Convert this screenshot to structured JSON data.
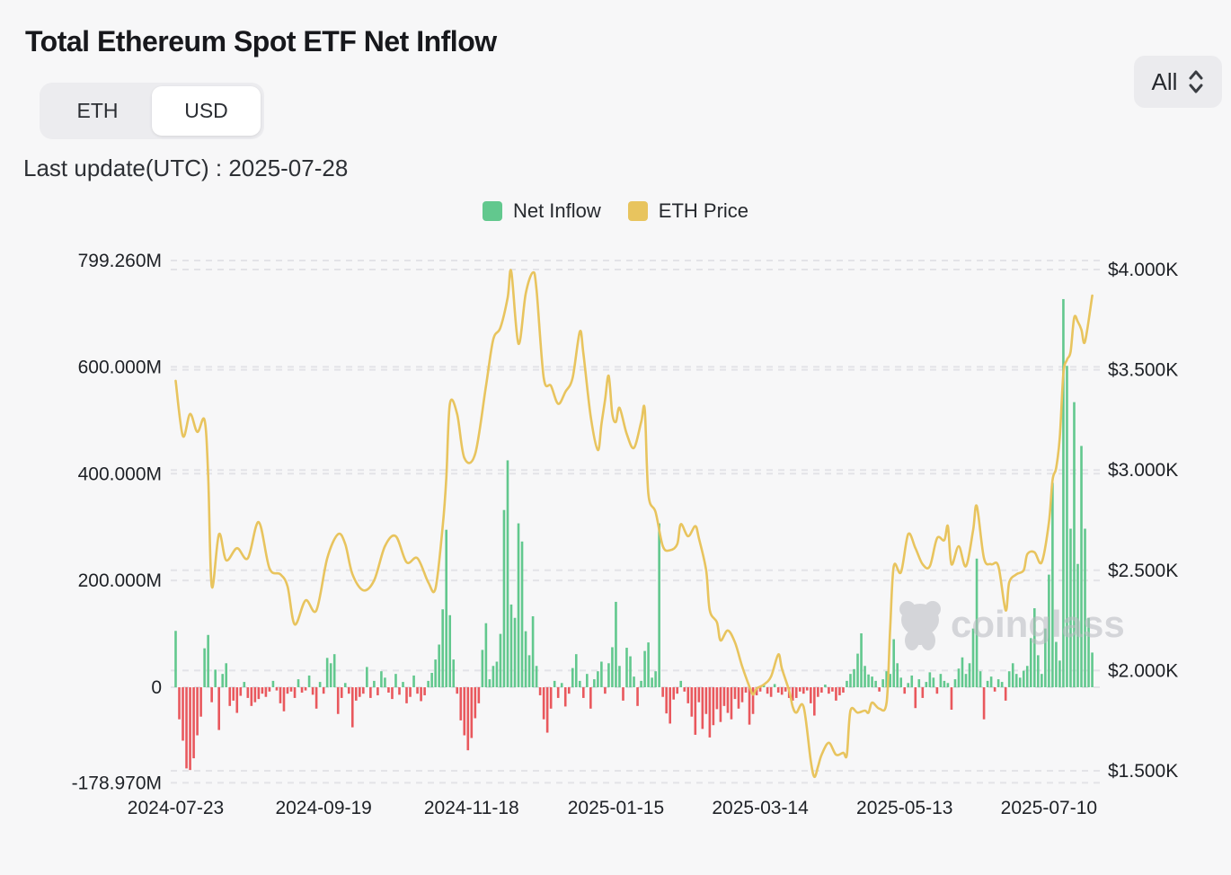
{
  "header": {
    "title": "Total Ethereum Spot ETF Net Inflow",
    "toggle": {
      "options": [
        "ETH",
        "USD"
      ],
      "selected": "USD"
    },
    "range_select": {
      "value": "All"
    },
    "last_update": "Last update(UTC) : 2025-07-28"
  },
  "legend": [
    {
      "label": "Net Inflow",
      "color": "#62C88E"
    },
    {
      "label": "ETH Price",
      "color": "#E8C45E"
    }
  ],
  "watermark": {
    "text": "coinglass"
  },
  "colors": {
    "bar_positive": "#62C88E",
    "bar_negative": "#E9585D",
    "price_line": "#E8C45E",
    "grid": "#e3e3e7",
    "axis_text": "#1e2126"
  },
  "chart_data": {
    "type": "bar+line",
    "title": "Total Ethereum Spot ETF Net Inflow",
    "grid": "dashed",
    "legend_position": "top-center",
    "left_axis": {
      "name": "Net Inflow (USD millions)",
      "max": 799.26,
      "min": -178.97,
      "ticks": [
        {
          "label": "799.260M",
          "value": 799.26
        },
        {
          "label": "600.000M",
          "value": 600
        },
        {
          "label": "400.000M",
          "value": 400
        },
        {
          "label": "200.000M",
          "value": 200
        },
        {
          "label": "0",
          "value": 0
        },
        {
          "label": "-178.970M",
          "value": -178.97
        }
      ]
    },
    "right_axis": {
      "name": "ETH Price (USD)",
      "max": 4000,
      "min": 1500,
      "ticks": [
        {
          "label": "$4.000K",
          "value": 4000
        },
        {
          "label": "$3.500K",
          "value": 3500
        },
        {
          "label": "$3.000K",
          "value": 3000
        },
        {
          "label": "$2.500K",
          "value": 2500
        },
        {
          "label": "$2.000K",
          "value": 2000
        },
        {
          "label": "$1.500K",
          "value": 1500
        }
      ]
    },
    "x_ticks": [
      {
        "label": "2024-07-23",
        "i": 0
      },
      {
        "label": "2024-09-19",
        "i": 41
      },
      {
        "label": "2024-11-18",
        "i": 82
      },
      {
        "label": "2025-01-15",
        "i": 122
      },
      {
        "label": "2025-03-14",
        "i": 162
      },
      {
        "label": "2025-05-13",
        "i": 202
      },
      {
        "label": "2025-07-10",
        "i": 242
      }
    ],
    "series": [
      {
        "name": "Net Inflow",
        "type": "bar",
        "unit": "USD millions per trading day",
        "values": [
          105.6,
          -60,
          -100,
          -152,
          -155,
          -133,
          -90,
          -55,
          73,
          98,
          -28,
          33,
          -80,
          25,
          45,
          -35,
          -25,
          -48,
          -16,
          10,
          -20,
          -35,
          -28,
          -22,
          -12,
          -18,
          -8,
          12,
          -6,
          -30,
          -45,
          -12,
          -8,
          -20,
          15,
          -10,
          -6,
          22,
          -14,
          -40,
          10,
          -12,
          55,
          45,
          62,
          -50,
          -20,
          8,
          -12,
          -75,
          -25,
          -18,
          -12,
          38,
          -20,
          12,
          -15,
          30,
          18,
          -10,
          -22,
          25,
          -14,
          10,
          -30,
          -18,
          22,
          -12,
          -26,
          -15,
          12,
          27,
          52,
          80,
          146,
          295,
          135,
          52,
          -12,
          -62,
          -90,
          -118,
          -95,
          -58,
          -30,
          70,
          120,
          15,
          40,
          48,
          100,
          332,
          425,
          155,
          130,
          307,
          273,
          105,
          60,
          133,
          40,
          -15,
          -60,
          -85,
          -40,
          12,
          -20,
          8,
          -36,
          -12,
          36,
          62,
          12,
          -20,
          25,
          -40,
          15,
          30,
          48,
          -12,
          45,
          75,
          160,
          40,
          -25,
          74,
          58,
          20,
          -35,
          12,
          68,
          84,
          18,
          30,
          307,
          -18,
          -49,
          -68,
          -23,
          -12,
          12,
          -8,
          -30,
          -55,
          -89,
          -28,
          -78,
          -50,
          -94,
          -71,
          -41,
          -65,
          -35,
          -48,
          -60,
          -22,
          -40,
          -28,
          -10,
          -70,
          -50,
          -15,
          -8,
          5,
          -12,
          -18,
          6,
          -10,
          -14,
          -8,
          -20,
          -25,
          -20,
          -8,
          -12,
          -6,
          -30,
          -53,
          -18,
          -10,
          5,
          -12,
          -8,
          -25,
          -15,
          -10,
          12,
          25,
          34,
          63,
          101,
          40,
          24,
          20,
          12,
          -8,
          15,
          30,
          25,
          90,
          45,
          18,
          -12,
          8,
          22,
          -39,
          15,
          -20,
          10,
          28,
          18,
          -12,
          25,
          12,
          8,
          -42,
          15,
          35,
          56,
          25,
          45,
          110,
          241,
          30,
          -60,
          12,
          20,
          -8,
          15,
          10,
          -25,
          30,
          45,
          25,
          18,
          31,
          40,
          92,
          148,
          60,
          25,
          110,
          211,
          383,
          85,
          50,
          727,
          602,
          297,
          534,
          231,
          452,
          297,
          130,
          65
        ]
      },
      {
        "name": "ETH Price",
        "type": "line",
        "unit": "USD",
        "points": [
          [
            0,
            3445
          ],
          [
            2,
            3170
          ],
          [
            4,
            3280
          ],
          [
            6,
            3190
          ],
          [
            8,
            3250
          ],
          [
            9,
            2980
          ],
          [
            10,
            2420
          ],
          [
            12,
            2680
          ],
          [
            14,
            2550
          ],
          [
            17,
            2610
          ],
          [
            20,
            2560
          ],
          [
            23,
            2740
          ],
          [
            26,
            2510
          ],
          [
            29,
            2480
          ],
          [
            31,
            2420
          ],
          [
            33,
            2230
          ],
          [
            36,
            2350
          ],
          [
            39,
            2300
          ],
          [
            42,
            2560
          ],
          [
            45,
            2680
          ],
          [
            47,
            2630
          ],
          [
            49,
            2480
          ],
          [
            52,
            2400
          ],
          [
            55,
            2450
          ],
          [
            58,
            2620
          ],
          [
            61,
            2670
          ],
          [
            64,
            2540
          ],
          [
            67,
            2560
          ],
          [
            70,
            2440
          ],
          [
            72,
            2410
          ],
          [
            74,
            2720
          ],
          [
            75,
            2960
          ],
          [
            76,
            3330
          ],
          [
            78,
            3280
          ],
          [
            80,
            3060
          ],
          [
            83,
            3080
          ],
          [
            86,
            3420
          ],
          [
            88,
            3650
          ],
          [
            90,
            3710
          ],
          [
            92,
            3860
          ],
          [
            93,
            3990
          ],
          [
            95,
            3630
          ],
          [
            97,
            3880
          ],
          [
            99,
            3985
          ],
          [
            100,
            3900
          ],
          [
            102,
            3460
          ],
          [
            104,
            3420
          ],
          [
            106,
            3330
          ],
          [
            108,
            3390
          ],
          [
            110,
            3460
          ],
          [
            112,
            3690
          ],
          [
            113,
            3580
          ],
          [
            115,
            3270
          ],
          [
            117,
            3100
          ],
          [
            118,
            3230
          ],
          [
            119,
            3350
          ],
          [
            120,
            3470
          ],
          [
            121,
            3280
          ],
          [
            122,
            3240
          ],
          [
            123,
            3310
          ],
          [
            125,
            3180
          ],
          [
            127,
            3110
          ],
          [
            129,
            3240
          ],
          [
            130,
            3300
          ],
          [
            131,
            2880
          ],
          [
            133,
            2790
          ],
          [
            135,
            2620
          ],
          [
            137,
            2600
          ],
          [
            139,
            2630
          ],
          [
            140,
            2730
          ],
          [
            142,
            2670
          ],
          [
            144,
            2720
          ],
          [
            145,
            2660
          ],
          [
            147,
            2500
          ],
          [
            148,
            2300
          ],
          [
            150,
            2240
          ],
          [
            151,
            2150
          ],
          [
            153,
            2200
          ],
          [
            155,
            2140
          ],
          [
            157,
            2020
          ],
          [
            159,
            1920
          ],
          [
            160,
            1880
          ],
          [
            161,
            1910
          ],
          [
            163,
            1930
          ],
          [
            165,
            1970
          ],
          [
            167,
            2080
          ],
          [
            168,
            2010
          ],
          [
            170,
            1900
          ],
          [
            171,
            1820
          ],
          [
            172,
            1790
          ],
          [
            174,
            1820
          ],
          [
            176,
            1550
          ],
          [
            177,
            1470
          ],
          [
            178,
            1520
          ],
          [
            179,
            1580
          ],
          [
            181,
            1640
          ],
          [
            183,
            1580
          ],
          [
            185,
            1590
          ],
          [
            186,
            1580
          ],
          [
            187,
            1800
          ],
          [
            189,
            1790
          ],
          [
            191,
            1800
          ],
          [
            192,
            1790
          ],
          [
            193,
            1840
          ],
          [
            195,
            1810
          ],
          [
            197,
            1840
          ],
          [
            198,
            2210
          ],
          [
            199,
            2520
          ],
          [
            201,
            2490
          ],
          [
            203,
            2680
          ],
          [
            205,
            2610
          ],
          [
            207,
            2530
          ],
          [
            209,
            2520
          ],
          [
            211,
            2660
          ],
          [
            213,
            2650
          ],
          [
            214,
            2720
          ],
          [
            215,
            2530
          ],
          [
            217,
            2620
          ],
          [
            219,
            2520
          ],
          [
            221,
            2700
          ],
          [
            222,
            2820
          ],
          [
            224,
            2560
          ],
          [
            226,
            2530
          ],
          [
            228,
            2520
          ],
          [
            230,
            2300
          ],
          [
            231,
            2440
          ],
          [
            233,
            2480
          ],
          [
            235,
            2500
          ],
          [
            236,
            2580
          ],
          [
            238,
            2590
          ],
          [
            240,
            2540
          ],
          [
            242,
            2740
          ],
          [
            243,
            2950
          ],
          [
            244,
            3010
          ],
          [
            245,
            3160
          ],
          [
            246,
            3480
          ],
          [
            247,
            3550
          ],
          [
            248,
            3590
          ],
          [
            249,
            3760
          ],
          [
            250,
            3740
          ],
          [
            251,
            3700
          ],
          [
            252,
            3640
          ],
          [
            254,
            3870
          ]
        ]
      }
    ]
  }
}
